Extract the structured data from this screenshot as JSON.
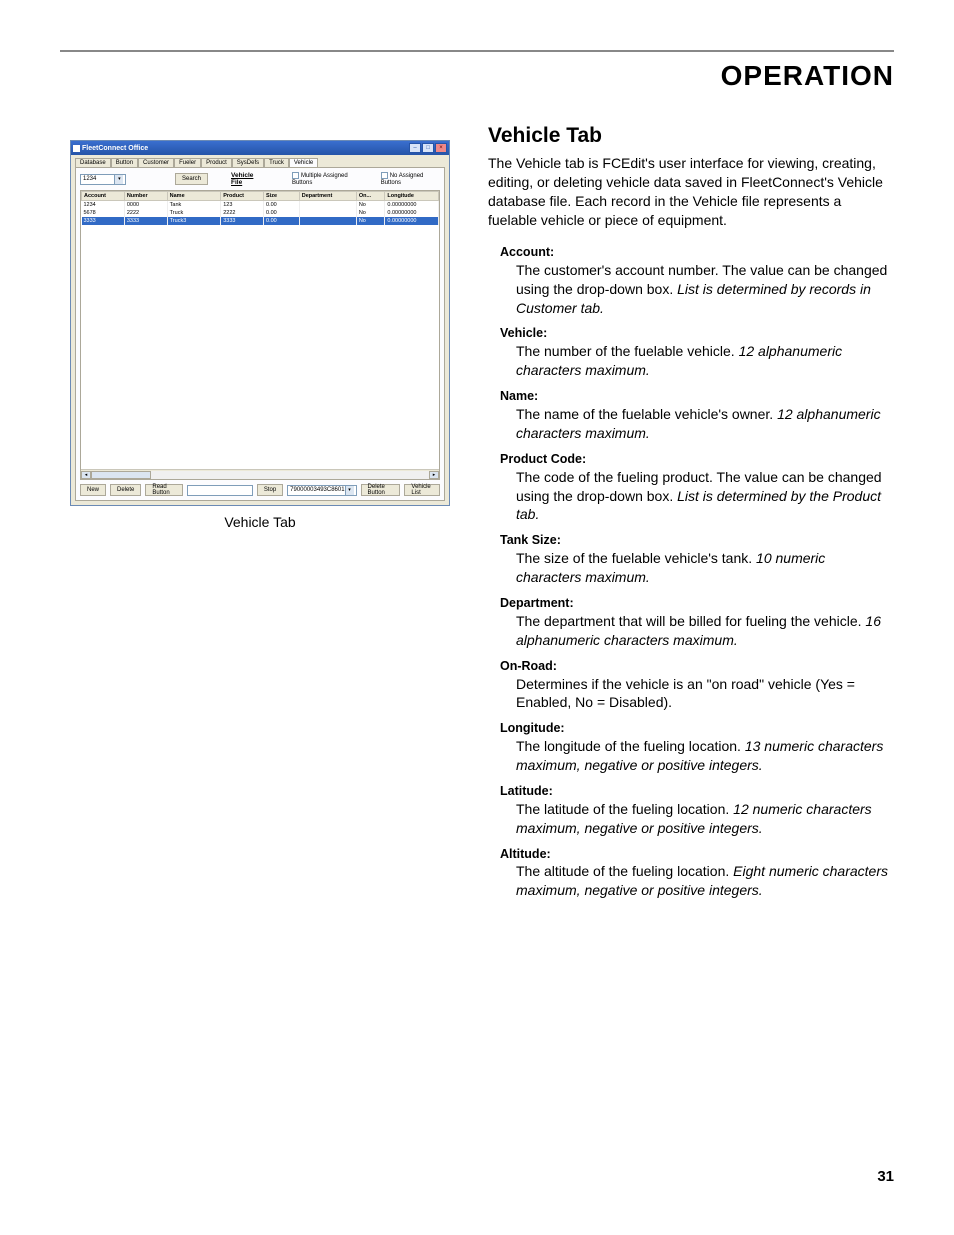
{
  "page": {
    "header": "OPERATION",
    "number": "31"
  },
  "figure": {
    "caption": "Vehicle Tab",
    "window_title": "FleetConnect Office",
    "tabs": [
      "Database",
      "Button",
      "Customer",
      "Fueler",
      "Product",
      "SysDefs",
      "Truck",
      "Vehicle"
    ],
    "active_tab": "Vehicle",
    "search_value": "1234",
    "search_button": "Search",
    "file_label": "Vehicle File",
    "cb_multi": "Multiple Assigned Buttons",
    "cb_none": "No Assigned Buttons",
    "columns": [
      "Account",
      "Number",
      "Name",
      "Product",
      "Size",
      "Department",
      "On...",
      "Longitude"
    ],
    "rows": [
      {
        "account": "1234",
        "number": "0000",
        "name": "Tank",
        "product": "123",
        "size": "0.00",
        "department": "",
        "on": "No",
        "longitude": "0.00000000",
        "sel": false
      },
      {
        "account": "5678",
        "number": "2222",
        "name": "Truck",
        "product": "2222",
        "size": "0.00",
        "department": "",
        "on": "No",
        "longitude": "0.00000000",
        "sel": false
      },
      {
        "account": "3333",
        "number": "3333",
        "name": "Truck3",
        "product": "3333",
        "size": "0.00",
        "department": "",
        "on": "No",
        "longitude": "0.00000000",
        "sel": true
      }
    ],
    "footer": {
      "new": "New",
      "delete": "Delete",
      "read_button": "Read Button",
      "stop": "Stop",
      "serial": "79000003493C8601",
      "delete_button": "Delete Button",
      "vehicle_list": "Vehicle List"
    }
  },
  "section": {
    "title": "Vehicle Tab",
    "intro": "The Vehicle tab is FCEdit's user interface for viewing, creating, editing, or deleting vehicle data saved in FleetConnect's Vehicle database file. Each record in the Vehicle file represents a fuelable vehicle or piece of equipment."
  },
  "fields": [
    {
      "label": "Account:",
      "desc": "The customer's account number. The value can be changed using the drop-down box. ",
      "ital": "List is determined by records in Customer tab."
    },
    {
      "label": "Vehicle:",
      "desc": "The number of the fuelable vehicle. ",
      "ital": "12 alphanumeric characters maximum."
    },
    {
      "label": "Name:",
      "desc": "The name of the fuelable vehicle's owner. ",
      "ital": "12 alphanumeric characters maximum."
    },
    {
      "label": "Product Code:",
      "desc": "The code of the fueling product. The value can be changed using the drop-down box. ",
      "ital": "List is determined by the Product tab."
    },
    {
      "label": "Tank Size:",
      "desc": "The size of the fuelable vehicle's tank. ",
      "ital": "10 numeric characters maximum."
    },
    {
      "label": "Department:",
      "desc": "The department that will be billed for fueling the vehicle. ",
      "ital": "16 alphanumeric characters maximum."
    },
    {
      "label": "On-Road:",
      "desc": "Determines if the vehicle is an \"on road\" vehicle (Yes = Enabled, No = Disabled).",
      "ital": ""
    },
    {
      "label": "Longitude:",
      "desc": "The longitude of the fueling location. ",
      "ital": "13 numeric characters maximum, negative or positive integers."
    },
    {
      "label": "Latitude:",
      "desc": "The latitude of the fueling location. ",
      "ital": "12 numeric characters maximum, negative or positive integers."
    },
    {
      "label": "Altitude:",
      "desc": "The altitude of the fueling location.  ",
      "ital": "Eight numeric characters maximum, negative or positive integers."
    }
  ]
}
